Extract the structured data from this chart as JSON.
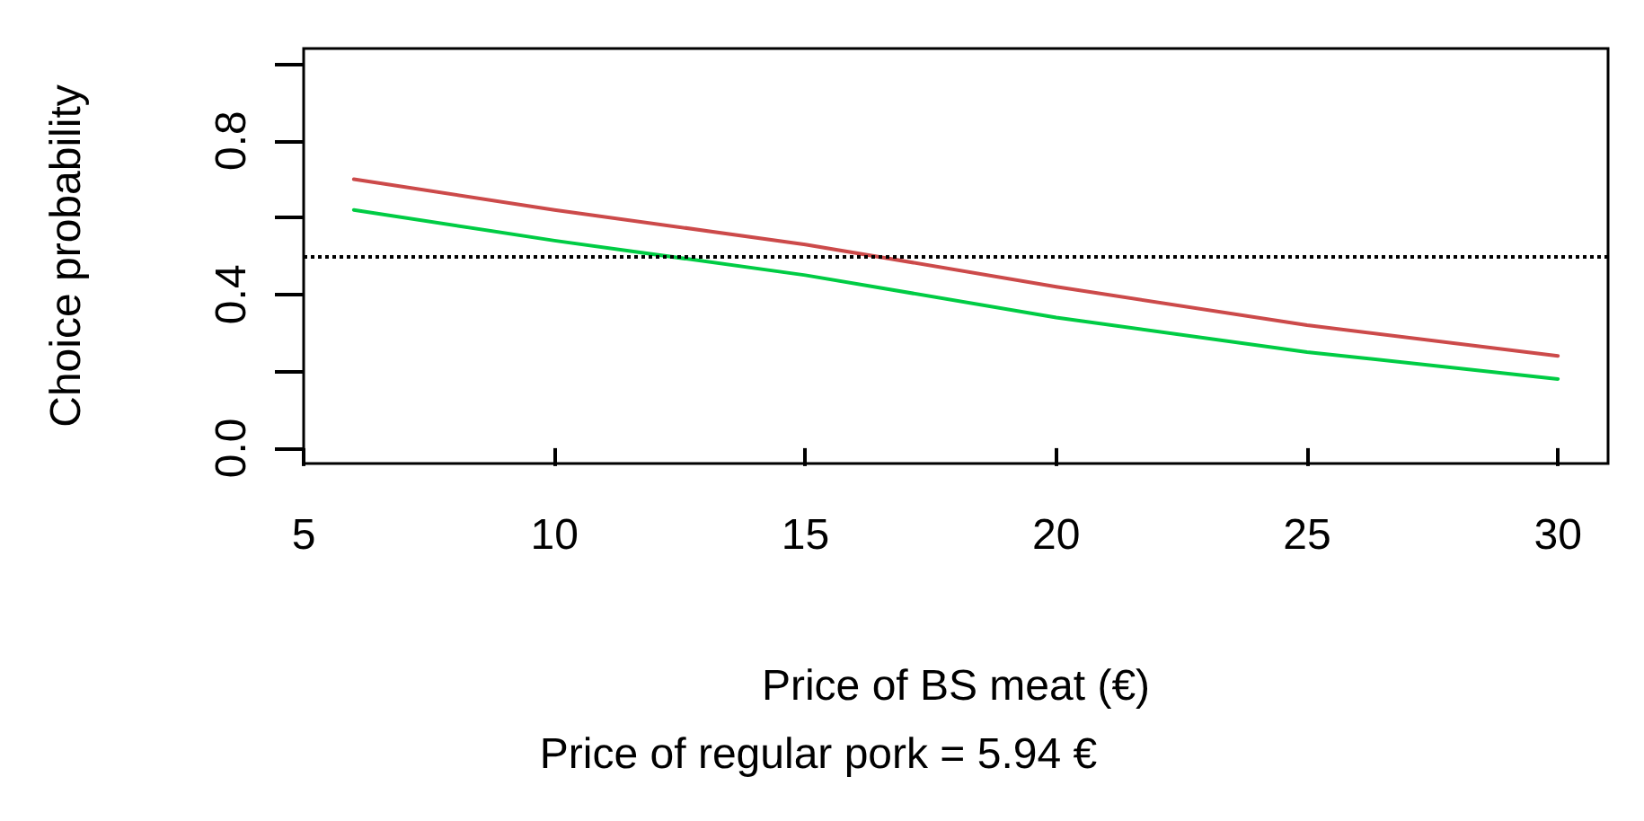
{
  "chart_data": {
    "type": "line",
    "xlabel": "Price of BS meat (€)",
    "ylabel": "Choice probability",
    "annotations": [
      "Price of regular pork = 5.94 €"
    ],
    "x": [
      6,
      10,
      15,
      20,
      25,
      30
    ],
    "series": [
      {
        "color": "#cc4a4a",
        "values": [
          0.7,
          0.62,
          0.53,
          0.42,
          0.32,
          0.24
        ]
      },
      {
        "color": "#00cc44",
        "values": [
          0.62,
          0.54,
          0.45,
          0.34,
          0.25,
          0.18
        ]
      }
    ],
    "xlim": [
      5,
      31
    ],
    "xticks": [
      5,
      10,
      15,
      20,
      25,
      30
    ],
    "ylim": [
      -0.04,
      1.04
    ],
    "yticks": [
      {
        "value": 0,
        "label": "0.0"
      },
      {
        "value": 0.2,
        "label": null
      },
      {
        "value": 0.4,
        "label": "0.4"
      },
      {
        "value": 0.6,
        "label": null
      },
      {
        "value": 0.8,
        "label": "0.8"
      },
      {
        "value": 1,
        "label": null
      }
    ],
    "ref_lines": [
      {
        "axis": "y",
        "value": 0.5,
        "line_style": "dotted",
        "color": "#000000"
      }
    ],
    "grid": false,
    "marker": "none",
    "line_style": "solid"
  }
}
